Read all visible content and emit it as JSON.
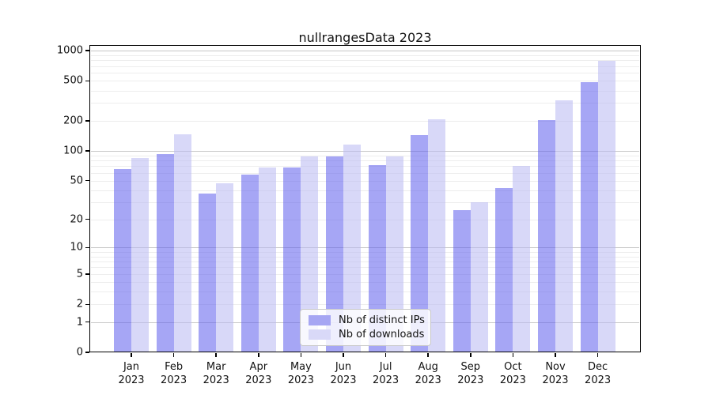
{
  "title": "nullrangesData 2023",
  "legend": {
    "items": [
      {
        "label": "Nb of distinct IPs",
        "color": "#a6a6f3"
      },
      {
        "label": "Nb of downloads",
        "color": "#d9d9f8"
      }
    ]
  },
  "chart_data": {
    "type": "bar",
    "title": "nullrangesData 2023",
    "categories": [
      "Jan 2023",
      "Feb 2023",
      "Mar 2023",
      "Apr 2023",
      "May 2023",
      "Jun 2023",
      "Jul 2023",
      "Aug 2023",
      "Sep 2023",
      "Oct 2023",
      "Nov 2023",
      "Dec 2023"
    ],
    "series": [
      {
        "name": "Nb of distinct IPs",
        "values": [
          66,
          93,
          37,
          57,
          68,
          87,
          72,
          144,
          25,
          42,
          204,
          481
        ]
      },
      {
        "name": "Nb of downloads",
        "values": [
          84,
          146,
          47,
          68,
          88,
          116,
          88,
          207,
          30,
          70,
          321,
          791
        ]
      }
    ],
    "xlabel": "",
    "ylabel": "",
    "y_scale": "log1p",
    "y_ticks": [
      0,
      1,
      2,
      5,
      10,
      20,
      50,
      100,
      200,
      500,
      1000
    ],
    "ylim": [
      0,
      1100
    ],
    "grid": true,
    "grid_major_at": [
      1,
      10,
      100,
      1000
    ],
    "legend_position": "inside-bottom-center",
    "colors": {
      "bar_ips": "rgba(97,97,237,0.56)",
      "bar_downloads": "rgba(186,186,242,0.56)",
      "grid_minor": "#ededed",
      "grid_major": "#c6c6c6",
      "axis": "#000000"
    }
  }
}
